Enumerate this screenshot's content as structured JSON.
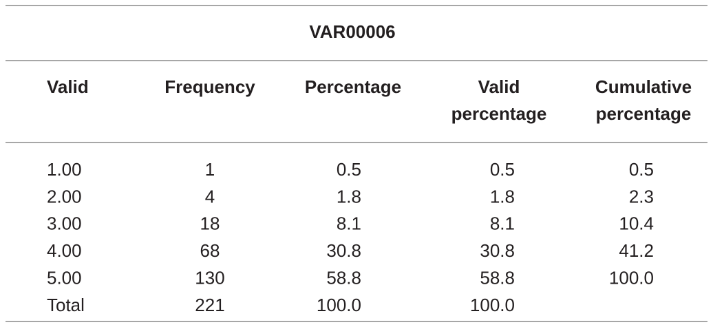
{
  "table": {
    "title": "VAR00006",
    "headers": [
      [
        "Valid"
      ],
      [
        "Frequency"
      ],
      [
        "Percentage"
      ],
      [
        "Valid",
        "percentage"
      ],
      [
        "Cumulative",
        "percentage"
      ]
    ],
    "rows": [
      [
        "1.00",
        "1",
        "0.5",
        "0.5",
        "0.5"
      ],
      [
        "2.00",
        "4",
        "1.8",
        "1.8",
        "2.3"
      ],
      [
        "3.00",
        "18",
        "8.1",
        "8.1",
        "10.4"
      ],
      [
        "4.00",
        "68",
        "30.8",
        "30.8",
        "41.2"
      ],
      [
        "5.00",
        "130",
        "58.8",
        "58.8",
        "100.0"
      ],
      [
        "Total",
        "221",
        "100.0",
        "100.0"
      ]
    ]
  }
}
